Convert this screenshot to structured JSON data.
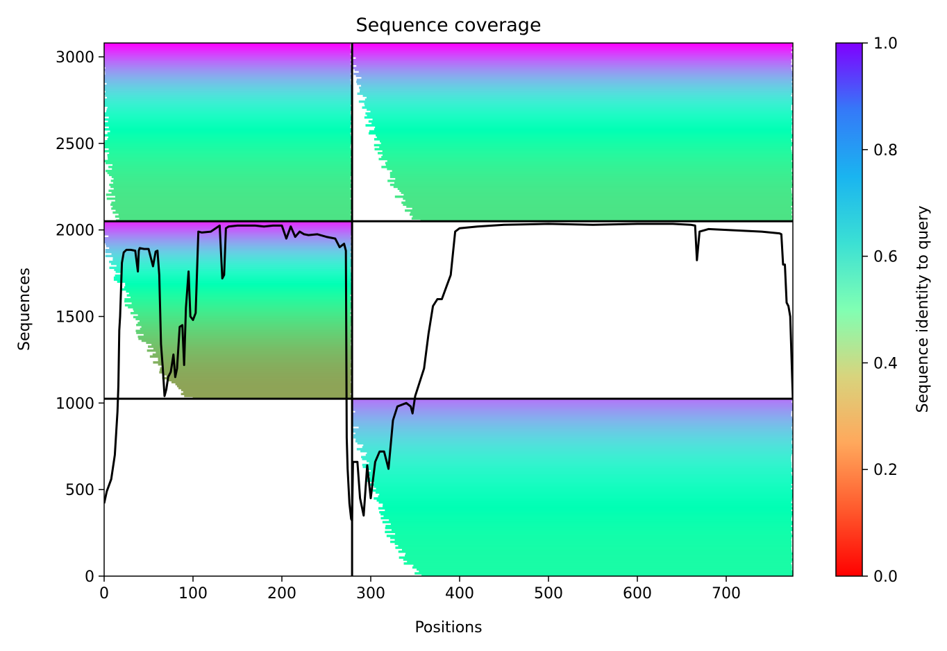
{
  "chart_data": {
    "type": "heatmap",
    "title": "Sequence coverage",
    "xlabel": "Positions",
    "ylabel": "Sequences",
    "xlim": [
      0,
      775
    ],
    "ylim": [
      0,
      3080
    ],
    "xticks": [
      0,
      100,
      200,
      300,
      400,
      500,
      600,
      700
    ],
    "yticks": [
      0,
      500,
      1000,
      1500,
      2000,
      2500,
      3000
    ],
    "grid": false,
    "colorbar": {
      "label": "Sequence identity to query",
      "colormap": "rainbow_r",
      "range": [
        0,
        1
      ],
      "ticks": [
        0.0,
        0.2,
        0.4,
        0.6,
        0.8,
        1.0
      ],
      "tick_labels": [
        "0.0",
        "0.2",
        "0.4",
        "0.6",
        "0.8",
        "1.0"
      ]
    },
    "block_boundaries": {
      "vertical_x": 279,
      "horizontal_y": [
        1025,
        2050
      ]
    },
    "blocks": [
      {
        "name": "top-left",
        "x_range": [
          0,
          279
        ],
        "y_range": [
          2050,
          3080
        ],
        "identity_bottom": 0.35,
        "identity_top": 1.0,
        "coverage_start_low": 20,
        "coverage_start_high": 0
      },
      {
        "name": "top-right",
        "x_range": [
          279,
          775
        ],
        "y_range": [
          2050,
          3080
        ],
        "identity_bottom": 0.35,
        "identity_top": 1.0,
        "coverage_start_low": 365,
        "coverage_start_high": 279
      },
      {
        "name": "middle-left",
        "x_range": [
          0,
          279
        ],
        "y_range": [
          1025,
          2050
        ],
        "identity_bottom": 0.22,
        "identity_top": 0.95,
        "coverage_start_low": 105,
        "coverage_start_high": 0
      },
      {
        "name": "bottom-right",
        "x_range": [
          279,
          775
        ],
        "y_range": [
          0,
          1025
        ],
        "identity_bottom": 0.45,
        "identity_top": 0.85,
        "coverage_start_low": 365,
        "coverage_start_high": 279
      }
    ],
    "coverage_line": {
      "name": "coverage",
      "color": "#000000",
      "x": [
        0,
        3,
        8,
        12,
        15,
        16,
        17,
        18,
        20,
        22,
        25,
        30,
        35,
        38,
        39,
        40,
        45,
        50,
        55,
        58,
        60,
        62,
        64,
        66,
        68,
        70,
        72,
        75,
        78,
        80,
        82,
        85,
        88,
        90,
        92,
        95,
        97,
        100,
        103,
        106,
        110,
        120,
        130,
        133,
        135,
        137,
        140,
        150,
        160,
        170,
        180,
        190,
        200,
        205,
        210,
        215,
        220,
        225,
        230,
        240,
        250,
        260,
        265,
        270,
        272,
        273,
        274,
        276,
        278,
        279,
        280,
        285,
        288,
        292,
        296,
        300,
        305,
        310,
        315,
        320,
        325,
        330,
        335,
        340,
        345,
        347,
        350,
        360,
        365,
        370,
        375,
        380,
        385,
        390,
        395,
        400,
        420,
        450,
        500,
        550,
        600,
        640,
        660,
        665,
        667,
        670,
        680,
        700,
        720,
        740,
        750,
        760,
        762,
        764,
        766,
        768,
        770,
        772,
        775
      ],
      "y": [
        420,
        490,
        560,
        700,
        950,
        1100,
        1420,
        1500,
        1810,
        1870,
        1885,
        1885,
        1880,
        1760,
        1880,
        1895,
        1890,
        1890,
        1790,
        1875,
        1880,
        1740,
        1340,
        1200,
        1040,
        1080,
        1150,
        1180,
        1280,
        1150,
        1200,
        1440,
        1450,
        1220,
        1550,
        1760,
        1500,
        1480,
        1520,
        1990,
        1985,
        1990,
        2025,
        1720,
        1740,
        2010,
        2020,
        2025,
        2025,
        2025,
        2020,
        2025,
        2025,
        1950,
        2020,
        1960,
        1990,
        1975,
        1970,
        1975,
        1960,
        1950,
        1900,
        1920,
        1880,
        800,
        620,
        420,
        330,
        320,
        660,
        660,
        450,
        350,
        640,
        450,
        660,
        720,
        720,
        620,
        900,
        980,
        990,
        1000,
        980,
        940,
        1040,
        1200,
        1400,
        1560,
        1600,
        1600,
        1670,
        1740,
        1990,
        2010,
        2020,
        2030,
        2035,
        2030,
        2035,
        2035,
        2030,
        2025,
        1825,
        1990,
        2005,
        2000,
        1995,
        1990,
        1985,
        1980,
        1975,
        1800,
        1800,
        1580,
        1560,
        1500,
        1020
      ]
    }
  }
}
